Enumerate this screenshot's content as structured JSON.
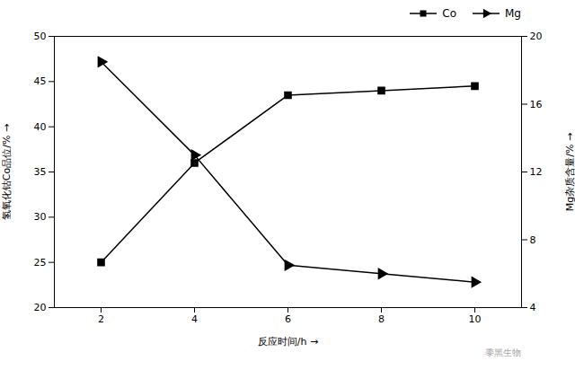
{
  "chart_data": {
    "type": "line",
    "x_label": "反应时间/h",
    "y_label": "氢氧化钴Co品位/%",
    "y2_label": "Mg杂质含量/%",
    "x": [
      2,
      4,
      6,
      8,
      10
    ],
    "xlim": [
      1,
      11
    ],
    "xticks": [
      2,
      4,
      6,
      8,
      10
    ],
    "ylim": [
      20,
      50
    ],
    "yticks": [
      20,
      25,
      30,
      35,
      40,
      45,
      50
    ],
    "y2lim": [
      4,
      20
    ],
    "y2ticks": [
      4,
      8,
      12,
      16,
      20
    ],
    "series": [
      {
        "name": "Co",
        "color": "#000000",
        "marker": "square",
        "line_style": "solid",
        "axis": "y",
        "values": [
          25,
          36,
          43.5,
          44,
          44.5
        ]
      },
      {
        "name": "Mg",
        "color": "#000000",
        "marker": "triangle-right",
        "line_style": "solid",
        "axis": "y2",
        "values": [
          18.5,
          13.0,
          6.5,
          6.0,
          5.5
        ]
      }
    ],
    "legend": "right",
    "grid": false,
    "annotations": [
      "黍黑生物"
    ]
  }
}
